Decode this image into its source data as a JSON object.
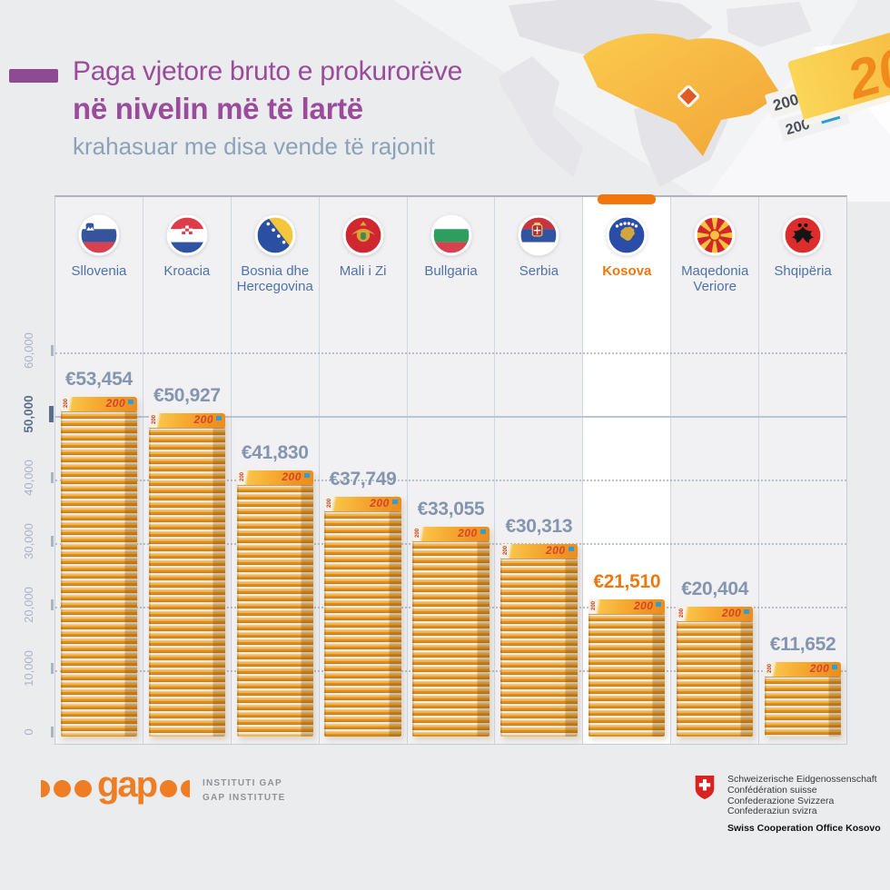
{
  "page": {
    "background": "#ebecee"
  },
  "header": {
    "title_line1": "Paga vjetore bruto e prokurorëve",
    "title_line2": "në nivelin më të lartë",
    "subtitle": "krahasuar me disa vende të rajonit",
    "title_color": "#9a4b9c",
    "subtitle_color": "#8ba2b8",
    "accent_color": "#8e4a92"
  },
  "chart_data": {
    "type": "bar",
    "title": "Paga vjetore bruto e prokurorëve në nivelin më të lartë",
    "subtitle": "krahasuar me disa vende të rajonit",
    "unit": "EUR",
    "bar_style": "stacks of €200 banknotes",
    "banknote_label": "200",
    "ylim": [
      0,
      60000
    ],
    "ytick_step": 10000,
    "ytick_labels": [
      "0",
      "10,000",
      "20,000",
      "30,000",
      "40,000",
      "50,000",
      "60,000"
    ],
    "emphasized_ytick": "50,000",
    "grid": "horizontal dotted lines each 10,000; solid line at 50,000",
    "legend": "none",
    "categories": [
      "Sllovenia",
      "Kroacia",
      "Bosnia dhe Hercegovina",
      "Mali i Zi",
      "Bullgaria",
      "Serbia",
      "Kosova",
      "Maqedonia Veriore",
      "Shqipëria"
    ],
    "values": [
      53454,
      50927,
      41830,
      37749,
      33055,
      30313,
      21510,
      20404,
      11652
    ],
    "value_labels": [
      "€53,454",
      "€50,927",
      "€41,830",
      "€37,749",
      "€33,055",
      "€30,313",
      "€21,510",
      "€20,404",
      "€11,652"
    ],
    "highlight_index": 6,
    "highlight_color": "#f0770e",
    "value_label_color": "#8495b0",
    "category_label_color": "#4f73a8",
    "columns": [
      {
        "name": "Sllovenia",
        "lines": [
          "Sllovenia"
        ],
        "flag": "slovenia",
        "value": 53454,
        "value_label": "€53,454",
        "highlight": false
      },
      {
        "name": "Kroacia",
        "lines": [
          "Kroacia"
        ],
        "flag": "croatia",
        "value": 50927,
        "value_label": "€50,927",
        "highlight": false
      },
      {
        "name": "Bosnia dhe Hercegovina",
        "lines": [
          "Bosnia dhe",
          "Hercegovina"
        ],
        "flag": "bosnia",
        "value": 41830,
        "value_label": "€41,830",
        "highlight": false
      },
      {
        "name": "Mali i Zi",
        "lines": [
          "Mali i Zi"
        ],
        "flag": "montenegro",
        "value": 37749,
        "value_label": "€37,749",
        "highlight": false
      },
      {
        "name": "Bullgaria",
        "lines": [
          "Bullgaria"
        ],
        "flag": "bulgaria",
        "value": 33055,
        "value_label": "€33,055",
        "highlight": false
      },
      {
        "name": "Serbia",
        "lines": [
          "Serbia"
        ],
        "flag": "serbia",
        "value": 30313,
        "value_label": "€30,313",
        "highlight": false
      },
      {
        "name": "Kosova",
        "lines": [
          "Kosova"
        ],
        "flag": "kosovo",
        "value": 21510,
        "value_label": "€21,510",
        "highlight": true
      },
      {
        "name": "Maqedonia Veriore",
        "lines": [
          "Maqedonia",
          "Veriore"
        ],
        "flag": "north-macedonia",
        "value": 20404,
        "value_label": "€20,404",
        "highlight": false
      },
      {
        "name": "Shqipëria",
        "lines": [
          "Shqipëria"
        ],
        "flag": "albania",
        "value": 11652,
        "value_label": "€11,652",
        "highlight": false
      }
    ]
  },
  "decor": {
    "banknote_value": "200",
    "map_region_color": "#f6b63c",
    "marker_color": "#e05a24"
  },
  "footer": {
    "gap_logo_text": "gap",
    "gap_lines": [
      "INSTITUTI GAP",
      "GAP INSTITUTE"
    ],
    "gap_orange": "#ee7d24",
    "swiss_lines": [
      "Schweizerische Eidgenossenschaft",
      "Confédération suisse",
      "Confederazione Svizzera",
      "Confederaziun svizra"
    ],
    "swiss_bold": "Swiss Cooperation Office Kosovo"
  }
}
